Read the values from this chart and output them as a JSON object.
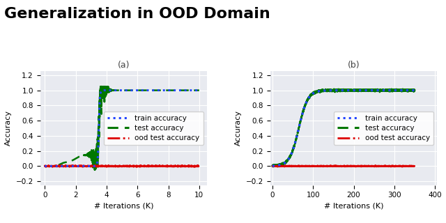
{
  "title": "Generalization in OOD Domain",
  "title_fontsize": 16,
  "title_fontweight": "bold",
  "subplot_a_label": "(a)",
  "subplot_b_label": "(b)",
  "xlabel": "# Iterations (K)",
  "ylabel": "Accuracy",
  "ylim": [
    -0.25,
    1.25
  ],
  "yticks": [
    -0.2,
    0.0,
    0.2,
    0.4,
    0.6,
    0.8,
    1.0,
    1.2
  ],
  "xlim_a": [
    -0.3,
    10.5
  ],
  "xticks_a": [
    0,
    2,
    4,
    6,
    8,
    10
  ],
  "xlim_b": [
    -5,
    405
  ],
  "xticks_b": [
    0,
    100,
    200,
    300,
    400
  ],
  "bg_color": "#e8eaf0",
  "train_color": "#2244ff",
  "test_color": "#007700",
  "ood_color": "#dd0000",
  "legend_labels": [
    "train accuracy",
    "test accuracy",
    "ood test accuracy"
  ],
  "legend_fontsize": 7.5
}
